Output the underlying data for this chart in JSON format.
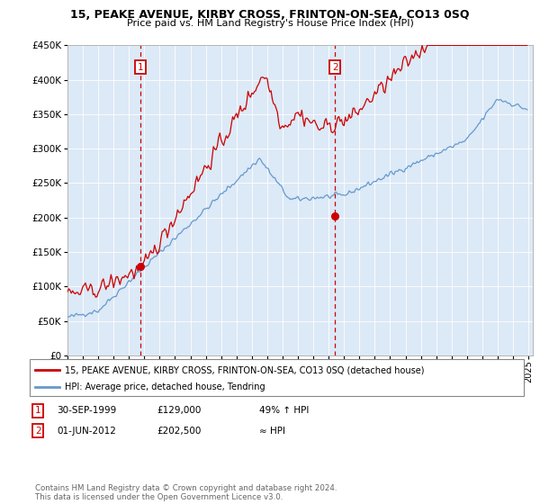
{
  "title": "15, PEAKE AVENUE, KIRBY CROSS, FRINTON-ON-SEA, CO13 0SQ",
  "subtitle": "Price paid vs. HM Land Registry's House Price Index (HPI)",
  "background_color": "#dce9f7",
  "plot_bg_color": "#dce9f7",
  "ylim": [
    0,
    450000
  ],
  "yticks": [
    0,
    50000,
    100000,
    150000,
    200000,
    250000,
    300000,
    350000,
    400000,
    450000
  ],
  "xlim_start": 1995.0,
  "xlim_end": 2025.3,
  "sale1_x": 1999.75,
  "sale1_y": 129000,
  "sale1_label": "1",
  "sale1_date_str": "30-SEP-1999",
  "sale1_hpi_note": "49% ↑ HPI",
  "sale2_x": 2012.42,
  "sale2_y": 202500,
  "sale2_label": "2",
  "sale2_date_str": "01-JUN-2012",
  "sale2_hpi_note": "≈ HPI",
  "legend_house_label": "15, PEAKE AVENUE, KIRBY CROSS, FRINTON-ON-SEA, CO13 0SQ (detached house)",
  "legend_hpi_label": "HPI: Average price, detached house, Tendring",
  "footer": "Contains HM Land Registry data © Crown copyright and database right 2024.\nThis data is licensed under the Open Government Licence v3.0.",
  "red_color": "#cc0000",
  "blue_color": "#6699cc"
}
